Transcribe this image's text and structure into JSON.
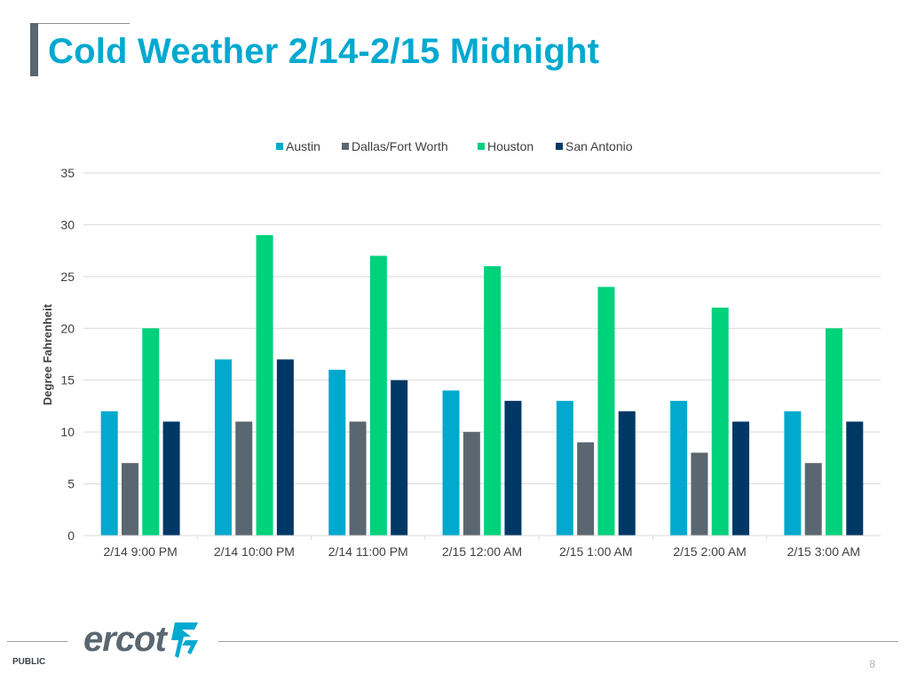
{
  "slide": {
    "title": "Cold Weather 2/14-2/15 Midnight",
    "classification": "PUBLIC",
    "page_number": "8",
    "logo_text": "ercot",
    "colors": {
      "title": "#00a9d0",
      "accent_bar": "#5a6670",
      "logo": "#5b6770",
      "logo_mark": "#00a9d0"
    }
  },
  "chart_data": {
    "type": "bar",
    "title": "",
    "xlabel": "",
    "ylabel": "Degree Fahrenheit",
    "ylim": [
      0,
      35
    ],
    "yticks": [
      0,
      5,
      10,
      15,
      20,
      25,
      30,
      35
    ],
    "grid": true,
    "legend_position": "top-center",
    "categories": [
      "2/14 9:00 PM",
      "2/14 10:00 PM",
      "2/14 11:00 PM",
      "2/15 12:00 AM",
      "2/15 1:00 AM",
      "2/15 2:00 AM",
      "2/15 3:00 AM"
    ],
    "series": [
      {
        "name": "Austin",
        "color": "#00a9cd",
        "values": [
          12,
          17,
          16,
          14,
          13,
          13,
          12
        ]
      },
      {
        "name": "Dallas/Fort Worth",
        "color": "#5b6770",
        "values": [
          7,
          11,
          11,
          10,
          9,
          8,
          7
        ]
      },
      {
        "name": "Houston",
        "color": "#00d17b",
        "values": [
          20,
          29,
          27,
          26,
          24,
          22,
          20
        ]
      },
      {
        "name": "San Antonio",
        "color": "#003865",
        "values": [
          11,
          17,
          15,
          13,
          12,
          11,
          11
        ]
      }
    ]
  }
}
